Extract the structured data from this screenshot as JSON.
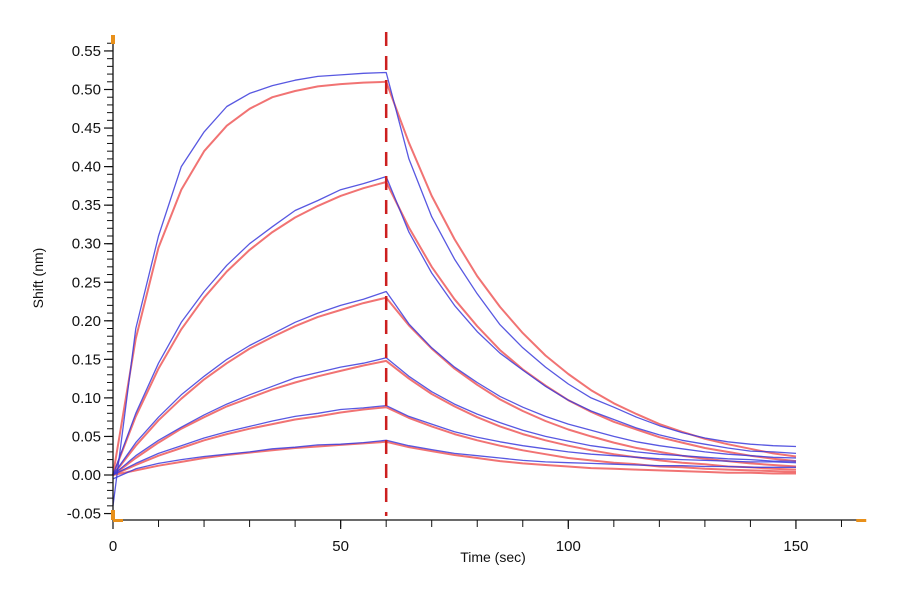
{
  "chart_data": {
    "type": "line",
    "title": "",
    "xlabel": "Time (sec)",
    "ylabel": "Shift (nm)",
    "xlim": [
      0,
      165
    ],
    "ylim": [
      -0.05,
      0.57
    ],
    "grid": false,
    "x_ticks": [
      0,
      50,
      100,
      150
    ],
    "x_tick_labels": [
      "0",
      "50",
      "100",
      "150"
    ],
    "x_minor_step": 10,
    "y_ticks": [
      -0.05,
      0.0,
      0.05,
      0.1,
      0.15,
      0.2,
      0.25,
      0.3,
      0.35,
      0.4,
      0.45,
      0.5,
      0.55
    ],
    "y_tick_labels": [
      "-0.05",
      "0.00",
      "0.05",
      "0.10",
      "0.15",
      "0.20",
      "0.25",
      "0.30",
      "0.35",
      "0.40",
      "0.45",
      "0.50",
      "0.55"
    ],
    "y_minor_step": 0.01,
    "annotations": [
      {
        "type": "vertical-dashed-line",
        "x": 60,
        "color": "#cc1f1f"
      }
    ],
    "colors": {
      "data": "#3b3bdc",
      "fit": "#f06464",
      "marker": "#cc1f1f",
      "axis": "#111111",
      "corner": "#e8901a"
    },
    "x": [
      0,
      5,
      10,
      15,
      20,
      25,
      30,
      35,
      40,
      45,
      50,
      55,
      60,
      65,
      70,
      75,
      80,
      85,
      90,
      95,
      100,
      105,
      110,
      115,
      120,
      125,
      130,
      135,
      140,
      145,
      150
    ],
    "series": [
      {
        "name": "data-1",
        "kind": "data",
        "values": [
          -0.04,
          0.19,
          0.31,
          0.4,
          0.445,
          0.478,
          0.495,
          0.505,
          0.512,
          0.517,
          0.519,
          0.521,
          0.522,
          0.41,
          0.335,
          0.28,
          0.235,
          0.195,
          0.165,
          0.14,
          0.118,
          0.1,
          0.088,
          0.075,
          0.064,
          0.055,
          0.048,
          0.043,
          0.04,
          0.038,
          0.037
        ]
      },
      {
        "name": "fit-1",
        "kind": "fit",
        "values": [
          0,
          0.177,
          0.295,
          0.37,
          0.42,
          0.453,
          0.475,
          0.49,
          0.498,
          0.504,
          0.507,
          0.509,
          0.51,
          0.431,
          0.362,
          0.306,
          0.258,
          0.218,
          0.184,
          0.155,
          0.131,
          0.11,
          0.093,
          0.079,
          0.066,
          0.056,
          0.047,
          0.04,
          0.034,
          0.028,
          0.024
        ]
      },
      {
        "name": "data-2",
        "kind": "data",
        "values": [
          0,
          0.08,
          0.145,
          0.198,
          0.238,
          0.272,
          0.3,
          0.322,
          0.343,
          0.356,
          0.37,
          0.378,
          0.387,
          0.315,
          0.262,
          0.22,
          0.186,
          0.158,
          0.136,
          0.115,
          0.097,
          0.083,
          0.072,
          0.061,
          0.052,
          0.045,
          0.04,
          0.035,
          0.031,
          0.03,
          0.028
        ]
      },
      {
        "name": "fit-2",
        "kind": "fit",
        "values": [
          0,
          0.076,
          0.138,
          0.189,
          0.23,
          0.264,
          0.292,
          0.315,
          0.334,
          0.349,
          0.362,
          0.372,
          0.38,
          0.321,
          0.27,
          0.228,
          0.193,
          0.162,
          0.137,
          0.116,
          0.097,
          0.082,
          0.069,
          0.059,
          0.049,
          0.042,
          0.035,
          0.03,
          0.025,
          0.021,
          0.018
        ]
      },
      {
        "name": "data-3",
        "kind": "data",
        "values": [
          0,
          0.042,
          0.075,
          0.104,
          0.128,
          0.15,
          0.168,
          0.183,
          0.198,
          0.21,
          0.22,
          0.228,
          0.238,
          0.196,
          0.165,
          0.14,
          0.12,
          0.102,
          0.088,
          0.076,
          0.066,
          0.058,
          0.05,
          0.043,
          0.038,
          0.034,
          0.03,
          0.027,
          0.025,
          0.023,
          0.022
        ]
      },
      {
        "name": "fit-3",
        "kind": "fit",
        "values": [
          0,
          0.038,
          0.071,
          0.099,
          0.124,
          0.145,
          0.164,
          0.179,
          0.193,
          0.205,
          0.214,
          0.223,
          0.23,
          0.194,
          0.164,
          0.138,
          0.117,
          0.098,
          0.083,
          0.07,
          0.059,
          0.05,
          0.042,
          0.035,
          0.03,
          0.025,
          0.021,
          0.018,
          0.015,
          0.013,
          0.011
        ]
      },
      {
        "name": "data-4",
        "kind": "data",
        "values": [
          0,
          0.025,
          0.045,
          0.062,
          0.078,
          0.092,
          0.104,
          0.115,
          0.126,
          0.133,
          0.14,
          0.145,
          0.152,
          0.128,
          0.108,
          0.092,
          0.079,
          0.068,
          0.058,
          0.05,
          0.044,
          0.038,
          0.034,
          0.03,
          0.027,
          0.025,
          0.023,
          0.021,
          0.02,
          0.018,
          0.018
        ]
      },
      {
        "name": "fit-4",
        "kind": "fit",
        "values": [
          0,
          0.022,
          0.042,
          0.06,
          0.075,
          0.089,
          0.1,
          0.111,
          0.12,
          0.128,
          0.135,
          0.142,
          0.148,
          0.125,
          0.105,
          0.089,
          0.075,
          0.063,
          0.053,
          0.045,
          0.038,
          0.032,
          0.027,
          0.023,
          0.019,
          0.016,
          0.014,
          0.011,
          0.01,
          0.008,
          0.007
        ]
      },
      {
        "name": "data-5",
        "kind": "data",
        "values": [
          0,
          0.015,
          0.028,
          0.038,
          0.048,
          0.056,
          0.063,
          0.07,
          0.076,
          0.08,
          0.085,
          0.087,
          0.09,
          0.076,
          0.066,
          0.056,
          0.049,
          0.043,
          0.038,
          0.034,
          0.03,
          0.027,
          0.025,
          0.023,
          0.021,
          0.02,
          0.019,
          0.018,
          0.017,
          0.017,
          0.016
        ]
      },
      {
        "name": "fit-5",
        "kind": "fit",
        "values": [
          0,
          0.013,
          0.025,
          0.035,
          0.045,
          0.053,
          0.06,
          0.066,
          0.072,
          0.076,
          0.081,
          0.085,
          0.088,
          0.074,
          0.063,
          0.053,
          0.045,
          0.038,
          0.032,
          0.027,
          0.022,
          0.019,
          0.016,
          0.014,
          0.011,
          0.01,
          0.008,
          0.007,
          0.006,
          0.005,
          0.004
        ]
      },
      {
        "name": "data-6",
        "kind": "data",
        "values": [
          -0.005,
          0.008,
          0.015,
          0.02,
          0.024,
          0.027,
          0.03,
          0.034,
          0.036,
          0.039,
          0.04,
          0.042,
          0.045,
          0.038,
          0.033,
          0.028,
          0.025,
          0.022,
          0.019,
          0.017,
          0.016,
          0.015,
          0.014,
          0.013,
          0.012,
          0.012,
          0.011,
          0.011,
          0.01,
          0.01,
          0.01
        ]
      },
      {
        "name": "fit-6",
        "kind": "fit",
        "values": [
          0,
          0.006,
          0.012,
          0.017,
          0.022,
          0.026,
          0.029,
          0.032,
          0.035,
          0.037,
          0.039,
          0.041,
          0.043,
          0.036,
          0.031,
          0.026,
          0.022,
          0.018,
          0.015,
          0.013,
          0.011,
          0.009,
          0.008,
          0.007,
          0.006,
          0.005,
          0.004,
          0.003,
          0.003,
          0.002,
          0.002
        ]
      }
    ]
  }
}
